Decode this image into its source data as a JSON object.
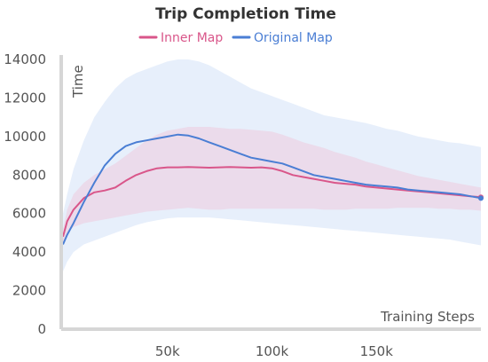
{
  "chart_data": {
    "type": "line",
    "title": "Trip Completion Time",
    "xlabel": "Training Steps",
    "ylabel": "Time",
    "xlim": [
      0,
      200000
    ],
    "ylim": [
      0,
      14000
    ],
    "x_ticks": [
      50000,
      100000,
      150000
    ],
    "x_tick_labels": [
      "50k",
      "100k",
      "150k"
    ],
    "y_ticks": [
      0,
      2000,
      4000,
      6000,
      8000,
      10000,
      12000,
      14000
    ],
    "y_tick_labels": [
      "0",
      "2000",
      "4000",
      "6000",
      "8000",
      "10000",
      "12000",
      "14000"
    ],
    "grid": false,
    "legend": "top-center",
    "series": [
      {
        "name": "Inner Map",
        "color": "#d9568a",
        "band_color": "#f0c4d8",
        "x": [
          0,
          2000,
          5000,
          10000,
          15000,
          20000,
          25000,
          30000,
          35000,
          40000,
          45000,
          50000,
          55000,
          60000,
          65000,
          70000,
          75000,
          80000,
          85000,
          90000,
          95000,
          100000,
          105000,
          110000,
          115000,
          120000,
          125000,
          130000,
          135000,
          140000,
          145000,
          150000,
          155000,
          160000,
          165000,
          170000,
          175000,
          180000,
          185000,
          190000,
          195000,
          200000
        ],
        "y": [
          4800,
          5600,
          6200,
          6800,
          7100,
          7200,
          7350,
          7700,
          8000,
          8200,
          8350,
          8400,
          8400,
          8420,
          8400,
          8380,
          8400,
          8420,
          8400,
          8380,
          8400,
          8350,
          8200,
          8000,
          7900,
          7800,
          7700,
          7600,
          7550,
          7500,
          7400,
          7350,
          7300,
          7250,
          7200,
          7150,
          7100,
          7050,
          7000,
          6950,
          6900,
          6850
        ],
        "lower": [
          4500,
          5000,
          5300,
          5500,
          5600,
          5700,
          5800,
          5900,
          6000,
          6100,
          6150,
          6200,
          6250,
          6300,
          6250,
          6200,
          6200,
          6250,
          6250,
          6250,
          6250,
          6250,
          6250,
          6250,
          6250,
          6250,
          6200,
          6200,
          6200,
          6250,
          6250,
          6250,
          6250,
          6300,
          6300,
          6300,
          6300,
          6250,
          6250,
          6200,
          6200,
          6150
        ],
        "upper": [
          5200,
          6200,
          7000,
          7600,
          8000,
          8300,
          8600,
          9000,
          9400,
          9800,
          10100,
          10300,
          10400,
          10500,
          10500,
          10500,
          10450,
          10400,
          10400,
          10350,
          10300,
          10250,
          10100,
          9900,
          9700,
          9550,
          9400,
          9200,
          9050,
          8900,
          8700,
          8550,
          8400,
          8250,
          8100,
          7950,
          7850,
          7750,
          7650,
          7550,
          7450,
          7350
        ]
      },
      {
        "name": "Original Map",
        "color": "#4a7ed4",
        "band_color": "#d4e2f7",
        "x": [
          0,
          2000,
          5000,
          10000,
          15000,
          20000,
          25000,
          30000,
          35000,
          40000,
          45000,
          50000,
          55000,
          60000,
          65000,
          70000,
          75000,
          80000,
          85000,
          90000,
          95000,
          100000,
          105000,
          110000,
          115000,
          120000,
          125000,
          130000,
          135000,
          140000,
          145000,
          150000,
          155000,
          160000,
          165000,
          170000,
          175000,
          180000,
          185000,
          190000,
          195000,
          200000
        ],
        "y": [
          4400,
          4900,
          5500,
          6600,
          7600,
          8500,
          9100,
          9500,
          9700,
          9800,
          9900,
          10000,
          10100,
          10050,
          9900,
          9700,
          9500,
          9300,
          9100,
          8900,
          8800,
          8700,
          8600,
          8400,
          8200,
          8000,
          7900,
          7800,
          7700,
          7600,
          7500,
          7450,
          7400,
          7350,
          7250,
          7200,
          7150,
          7100,
          7050,
          7000,
          6900,
          6800
        ],
        "lower": [
          3000,
          3500,
          4000,
          4400,
          4600,
          4800,
          5000,
          5200,
          5400,
          5550,
          5650,
          5750,
          5800,
          5800,
          5800,
          5800,
          5750,
          5700,
          5650,
          5600,
          5550,
          5500,
          5450,
          5400,
          5350,
          5300,
          5250,
          5200,
          5150,
          5100,
          5050,
          5000,
          4950,
          4900,
          4850,
          4800,
          4750,
          4700,
          4650,
          4550,
          4450,
          4350
        ],
        "upper": [
          6000,
          7000,
          8300,
          9800,
          11000,
          11800,
          12500,
          13000,
          13300,
          13500,
          13700,
          13900,
          14000,
          14000,
          13900,
          13700,
          13400,
          13100,
          12800,
          12500,
          12300,
          12100,
          11900,
          11700,
          11500,
          11300,
          11100,
          11000,
          10900,
          10800,
          10700,
          10550,
          10400,
          10300,
          10150,
          10000,
          9900,
          9800,
          9700,
          9650,
          9550,
          9450
        ]
      }
    ]
  }
}
